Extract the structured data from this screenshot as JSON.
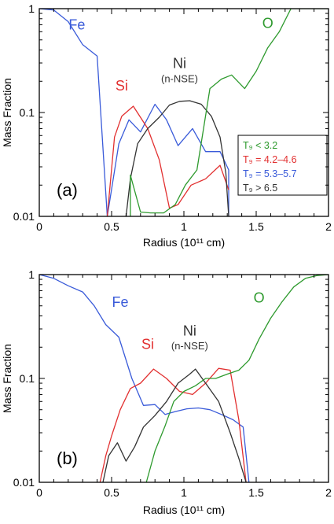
{
  "chart_data": [
    {
      "type": "line",
      "panel_label": "(a)",
      "xlabel": "Radius (10¹¹ cm)",
      "ylabel": "Mass Fraction",
      "xlim": [
        0,
        2
      ],
      "ylim": [
        0.01,
        1
      ],
      "yscale": "log",
      "x_ticks": [
        "0",
        "0.5",
        "1",
        "1.5",
        "2"
      ],
      "y_ticks": [
        "0.01",
        "0.1",
        "1"
      ],
      "legend": {
        "position": "right",
        "entries": [
          {
            "text": "T₉ < 3.2",
            "color": "#2e9a2e"
          },
          {
            "text": "T₉ = 4.2–4.6",
            "color": "#e23030"
          },
          {
            "text": "T₉ = 5.3–5.7",
            "color": "#3a5bd9"
          },
          {
            "text": "T₉ > 6.5",
            "color": "#333333"
          }
        ]
      },
      "series_labels": [
        {
          "text": "Fe",
          "color": "#3a5bd9",
          "x": 0.26,
          "y": 0.63
        },
        {
          "text": "Si",
          "color": "#e23030",
          "x": 0.57,
          "y": 0.163
        },
        {
          "text": "Ni",
          "color": "#333333",
          "x": 0.97,
          "y": 0.267
        },
        {
          "text": "(n-NSE)",
          "color": "#333333",
          "x": 0.97,
          "y": 0.195
        },
        {
          "text": "O",
          "color": "#2e9a2e",
          "x": 1.58,
          "y": 0.655
        }
      ],
      "series": [
        {
          "name": "Fe",
          "color": "#3a5bd9",
          "x": [
            0,
            0.1,
            0.2,
            0.3,
            0.4,
            0.47,
            0.55,
            0.62,
            0.7,
            0.8,
            0.88,
            0.96,
            1.06,
            1.15,
            1.25,
            1.31,
            1.31
          ],
          "y": [
            1,
            0.97,
            0.75,
            0.45,
            0.35,
            0.01,
            0.05,
            0.085,
            0.065,
            0.12,
            0.085,
            0.048,
            0.07,
            0.042,
            0.042,
            0.028,
            0.01
          ]
        },
        {
          "name": "Si",
          "color": "#e23030",
          "x": [
            0.47,
            0.52,
            0.57,
            0.65,
            0.75,
            0.83,
            0.9,
            0.96,
            1.05,
            1.15,
            1.25,
            1.31
          ],
          "y": [
            0.01,
            0.058,
            0.092,
            0.115,
            0.07,
            0.035,
            0.012,
            0.013,
            0.02,
            0.023,
            0.031,
            0.018
          ]
        },
        {
          "name": "Ni",
          "color": "#333333",
          "x": [
            0.6,
            0.63,
            0.68,
            0.75,
            0.83,
            0.9,
            0.97,
            1.04,
            1.12,
            1.19,
            1.25,
            1.29,
            1.31
          ],
          "y": [
            0.01,
            0.023,
            0.05,
            0.07,
            0.09,
            0.118,
            0.128,
            0.13,
            0.12,
            0.092,
            0.058,
            0.026,
            0.01
          ]
        },
        {
          "name": "O",
          "color": "#2e9a2e",
          "x": [
            0.63,
            0.63,
            0.7,
            0.77,
            0.86,
            0.94,
            1.01,
            1.09,
            1.18,
            1.26,
            1.33,
            1.42,
            1.5,
            1.58,
            1.66,
            1.74,
            1.83,
            2.0
          ],
          "y": [
            0.01,
            0.025,
            0.011,
            0.0108,
            0.0108,
            0.013,
            0.02,
            0.028,
            0.17,
            0.21,
            0.23,
            0.17,
            0.25,
            0.42,
            0.6,
            1,
            1,
            1
          ]
        }
      ]
    },
    {
      "type": "line",
      "panel_label": "(b)",
      "xlabel": "Radius (10¹¹ cm)",
      "ylabel": "Mass Fraction",
      "xlim": [
        0,
        2
      ],
      "ylim": [
        0.01,
        1
      ],
      "yscale": "log",
      "x_ticks": [
        "0",
        "0.5",
        "1",
        "1.5",
        "2"
      ],
      "y_ticks": [
        "0.01",
        "0.1",
        "1"
      ],
      "series_labels": [
        {
          "text": "Fe",
          "color": "#3a5bd9",
          "x": 0.56,
          "y": 0.49
        },
        {
          "text": "Si",
          "color": "#e23030",
          "x": 0.75,
          "y": 0.192
        },
        {
          "text": "Ni",
          "color": "#333333",
          "x": 1.04,
          "y": 0.258
        },
        {
          "text": "(n-NSE)",
          "color": "#333333",
          "x": 1.04,
          "y": 0.19
        },
        {
          "text": "O",
          "color": "#2e9a2e",
          "x": 1.52,
          "y": 0.54
        }
      ],
      "series": [
        {
          "name": "Fe",
          "color": "#3a5bd9",
          "x": [
            0,
            0.1,
            0.2,
            0.3,
            0.38,
            0.46,
            0.55,
            0.64,
            0.72,
            0.8,
            0.87,
            0.94,
            1.02,
            1.1,
            1.18,
            1.26,
            1.34,
            1.41,
            1.45
          ],
          "y": [
            1,
            0.92,
            0.78,
            0.68,
            0.5,
            0.33,
            0.25,
            0.1,
            0.055,
            0.056,
            0.045,
            0.048,
            0.051,
            0.052,
            0.05,
            0.045,
            0.04,
            0.034,
            0.01
          ]
        },
        {
          "name": "Si",
          "color": "#e23030",
          "x": [
            0.42,
            0.46,
            0.5,
            0.56,
            0.63,
            0.7,
            0.79,
            0.88,
            0.97,
            1.06,
            1.15,
            1.24,
            1.32,
            1.38,
            1.43
          ],
          "y": [
            0.01,
            0.018,
            0.028,
            0.05,
            0.08,
            0.09,
            0.123,
            0.1,
            0.075,
            0.07,
            0.09,
            0.125,
            0.12,
            0.04,
            0.01
          ]
        },
        {
          "name": "Ni",
          "color": "#333333",
          "x": [
            0.44,
            0.48,
            0.54,
            0.6,
            0.66,
            0.72,
            0.8,
            0.88,
            0.96,
            1.04,
            1.08,
            1.15,
            1.24,
            1.32,
            1.38,
            1.43
          ],
          "y": [
            0.01,
            0.018,
            0.024,
            0.016,
            0.022,
            0.034,
            0.044,
            0.06,
            0.09,
            0.11,
            0.123,
            0.09,
            0.06,
            0.03,
            0.017,
            0.01
          ]
        },
        {
          "name": "O",
          "color": "#2e9a2e",
          "x": [
            0.74,
            0.8,
            0.87,
            0.93,
            1.0,
            1.08,
            1.15,
            1.22,
            1.3,
            1.38,
            1.45,
            1.52,
            1.6,
            1.68,
            1.76,
            1.84,
            1.92,
            2.0
          ],
          "y": [
            0.01,
            0.02,
            0.035,
            0.06,
            0.075,
            0.085,
            0.1,
            0.1,
            0.11,
            0.12,
            0.15,
            0.24,
            0.38,
            0.55,
            0.76,
            0.92,
            0.98,
            1
          ]
        }
      ]
    }
  ]
}
